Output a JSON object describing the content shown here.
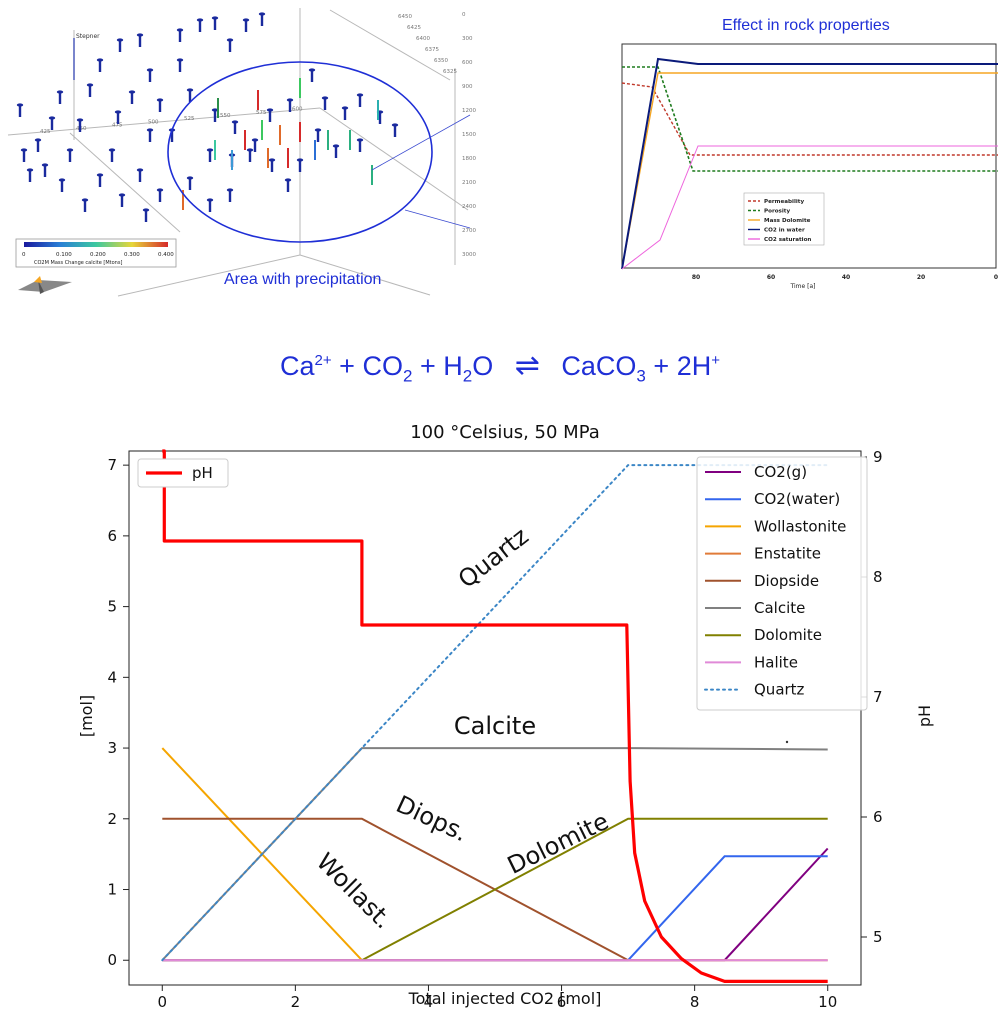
{
  "scene3d": {
    "well_label": "Stepner",
    "colorbar_ticks": [
      "0",
      "0.100",
      "0.200",
      "0.300",
      "0.400"
    ],
    "colorbar_label": "CO2M Mass Change calcite [Mtons]",
    "ellipse_caption": "Area with precipitation",
    "depth_ticks": [
      "0",
      "300",
      "600",
      "900",
      "1200",
      "1500",
      "1800",
      "2100",
      "2400",
      "2700",
      "3000"
    ],
    "axis_ticks_a": [
      "6450",
      "6425",
      "6400",
      "6375",
      "6350",
      "6325"
    ],
    "axis_ticks_b": [
      "425",
      "450",
      "475",
      "500",
      "525",
      "550",
      "575",
      "600"
    ]
  },
  "rock_panel": {
    "title": "Effect in rock properties",
    "xlabel": "Time [a]",
    "xticks": [
      "80",
      "60",
      "40",
      "20",
      "0"
    ],
    "legend": [
      {
        "name": "Permeability",
        "color": "#c0392b",
        "dash": "3,2"
      },
      {
        "name": "Porosity",
        "color": "#1e7b1e",
        "dash": "3,2"
      },
      {
        "name": "Mass Dolomite",
        "color": "#f5a623",
        "dash": ""
      },
      {
        "name": "CO2 in water",
        "color": "#0a1a7a",
        "dash": ""
      },
      {
        "name": "CO2 saturation",
        "color": "#ee66dd",
        "dash": ""
      }
    ]
  },
  "equation": {
    "lhs_ca": "Ca",
    "lhs_ca_charge": "2+",
    "plus1": "+",
    "co": "CO",
    "co_sub": "2",
    "plus2": "+",
    "h": "H",
    "h_sub": "2",
    "o": "O",
    "arrows": "⇌",
    "caco": "CaCO",
    "caco_sub": "3",
    "plus3": "+",
    "twoh": "2H",
    "twoh_charge": "+"
  },
  "chart_data": {
    "type": "line",
    "title": "100 °Celsius, 50 MPa",
    "xlabel": "Total injected CO2 [mol]",
    "ylabel": "[mol]",
    "y2label": "pH",
    "xlim": [
      -0.5,
      10.5
    ],
    "ylim": [
      -0.35,
      7.2
    ],
    "y2lim": [
      4.6,
      9.05
    ],
    "xticks": [
      0,
      2,
      4,
      6,
      8,
      10
    ],
    "yticks": [
      0,
      1,
      2,
      3,
      4,
      5,
      6,
      7
    ],
    "y2ticks": [
      5,
      6,
      7,
      8,
      9
    ],
    "series": [
      {
        "name": "CO2(g)",
        "color": "#800080",
        "style": "solid",
        "x": [
          0,
          8.45,
          10
        ],
        "y": [
          0,
          0,
          1.58
        ]
      },
      {
        "name": "CO2(water)",
        "color": "#3366ee",
        "style": "solid",
        "x": [
          0,
          7,
          8.45,
          10
        ],
        "y": [
          0,
          0,
          1.47,
          1.47
        ]
      },
      {
        "name": "Wollastonite",
        "color": "#f5a500",
        "style": "solid",
        "x": [
          0,
          3
        ],
        "y": [
          3,
          0
        ]
      },
      {
        "name": "Enstatite",
        "color": "#e07b39",
        "style": "solid",
        "x": [
          0,
          10
        ],
        "y": [
          0,
          0
        ]
      },
      {
        "name": "Diopside",
        "color": "#a0522d",
        "style": "solid",
        "x": [
          0,
          3,
          7
        ],
        "y": [
          2,
          2,
          0
        ]
      },
      {
        "name": "Calcite",
        "color": "#808080",
        "style": "solid",
        "x": [
          0,
          3,
          7,
          10
        ],
        "y": [
          0,
          3,
          3,
          2.98
        ]
      },
      {
        "name": "Dolomite",
        "color": "#808000",
        "style": "solid",
        "x": [
          3,
          7,
          10
        ],
        "y": [
          0,
          2,
          2
        ]
      },
      {
        "name": "Halite",
        "color": "#e08ad8",
        "style": "solid",
        "x": [
          0,
          10
        ],
        "y": [
          0,
          0
        ]
      },
      {
        "name": "Quartz",
        "color": "#3b86c6",
        "style": "dotted",
        "x": [
          0,
          7,
          10
        ],
        "y": [
          0,
          7,
          7
        ]
      }
    ],
    "ph_series": {
      "name": "pH",
      "color": "#ff0000",
      "x": [
        0,
        0.03,
        0.03,
        3,
        3,
        6.98,
        7.03,
        7.1,
        7.25,
        7.5,
        7.8,
        8.1,
        8.45,
        10
      ],
      "y": [
        9.05,
        9.05,
        8.3,
        8.3,
        7.6,
        7.6,
        6.3,
        5.7,
        5.3,
        5.0,
        4.82,
        4.7,
        4.63,
        4.63
      ]
    },
    "annotations": [
      {
        "text": "Quartz",
        "x": 5.05,
        "y": 5.6,
        "angle": -38
      },
      {
        "text": "Calcite",
        "x": 5.0,
        "y": 3.2,
        "angle": 0
      },
      {
        "text": "Diops.",
        "x": 4.0,
        "y": 1.9,
        "angle": 25
      },
      {
        "text": "Dolomite",
        "x": 6.0,
        "y": 1.55,
        "angle": -26
      },
      {
        "text": "Wollast.",
        "x": 2.8,
        "y": 0.9,
        "angle": 45
      }
    ]
  }
}
